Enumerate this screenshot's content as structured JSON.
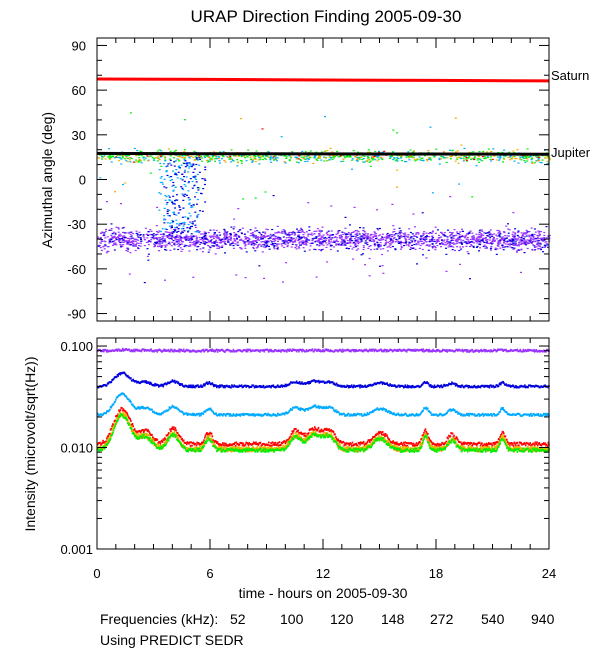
{
  "chart_data": {
    "type": "scatter",
    "title": "URAP Direction Finding  2005-09-30",
    "xlabel": "time - hours on 2005-09-30",
    "xlim": [
      0,
      24
    ],
    "xticks": [
      "0",
      "6",
      "12",
      "18",
      "24"
    ],
    "panels": [
      {
        "name": "azimuth",
        "ylabel": "Azimuthal angle (deg)",
        "ylim": [
          -95,
          95
        ],
        "yticks": [
          90,
          60,
          30,
          0,
          -30,
          -60,
          -90
        ],
        "yticklabels": [
          "90",
          "60",
          "30",
          "0",
          "-30",
          "-60",
          "-90"
        ],
        "reference_lines": [
          {
            "label": "Saturn",
            "color": "#ff0000",
            "points": [
              [
                0,
                67.5
              ],
              [
                6,
                67.2
              ],
              [
                12,
                66.8
              ],
              [
                18,
                66.5
              ],
              [
                24,
                66.2
              ]
            ]
          },
          {
            "label": "Jupiter",
            "color": "#000000",
            "points": [
              [
                0,
                17.5
              ],
              [
                6,
                17.3
              ],
              [
                12,
                17.2
              ],
              [
                18,
                17.1
              ],
              [
                24,
                17.0
              ]
            ]
          }
        ],
        "series": [
          {
            "name": "940",
            "color": "#9933ff",
            "y_center": -40,
            "spread": 7,
            "count": 1700
          },
          {
            "name": "540",
            "color": "#0000dd",
            "y_center": -40,
            "spread": 8,
            "count": 500
          },
          {
            "name": "148",
            "color": "#00ee00",
            "y_center": 16,
            "spread": 4,
            "count": 520
          },
          {
            "name": "272",
            "color": "#00aaff",
            "y_center": 15,
            "spread": 5,
            "count": 220
          },
          {
            "name": "120",
            "color": "#e6b800",
            "y_center": 16,
            "spread": 4,
            "count": 130
          },
          {
            "name": "100",
            "color": "#ff9900",
            "y_center": 16,
            "spread": 4,
            "count": 100
          },
          {
            "name": "52",
            "color": "#ff0000",
            "y_center": 16,
            "spread": 4,
            "count": 30
          }
        ]
      },
      {
        "name": "intensity",
        "ylabel": "Intensity (microvolt/sqrt(Hz))",
        "yscale": "log",
        "ylim": [
          0.001,
          0.12
        ],
        "yticks": [
          0.1,
          0.01,
          0.001
        ],
        "yticklabels": [
          "0.100",
          "0.010",
          "0.001"
        ],
        "series": [
          {
            "name": "940",
            "color": "#9933ff",
            "baseline": 0.09
          },
          {
            "name": "540",
            "color": "#0000dd",
            "baseline": 0.04
          },
          {
            "name": "272",
            "color": "#00aaff",
            "baseline": 0.021
          },
          {
            "name": "52",
            "color": "#ff0000",
            "baseline": 0.0108
          },
          {
            "name": "100",
            "color": "#ff9900",
            "baseline": 0.0095
          },
          {
            "name": "120",
            "color": "#e6b800",
            "baseline": 0.0098
          },
          {
            "name": "148",
            "color": "#00ee00",
            "baseline": 0.0094
          }
        ],
        "bursts": [
          [
            1.3,
            0.55,
            1.0
          ],
          [
            2.5,
            0.5,
            0.3
          ],
          [
            4.0,
            0.4,
            0.35
          ],
          [
            5.9,
            0.25,
            0.25
          ],
          [
            10.5,
            0.4,
            0.3
          ],
          [
            11.5,
            0.5,
            0.35
          ],
          [
            12.3,
            0.4,
            0.3
          ],
          [
            15.0,
            0.5,
            0.25
          ],
          [
            17.4,
            0.2,
            0.3
          ],
          [
            18.8,
            0.3,
            0.2
          ],
          [
            21.5,
            0.2,
            0.25
          ]
        ]
      }
    ],
    "legend": {
      "label": "Frequencies (kHz):",
      "entries": [
        {
          "text": "52",
          "color": "#ff0000"
        },
        {
          "text": "100",
          "color": "#ff9900"
        },
        {
          "text": "120",
          "color": "#e6b800"
        },
        {
          "text": "148",
          "color": "#00ee00"
        },
        {
          "text": "272",
          "color": "#00aaff"
        },
        {
          "text": "540",
          "color": "#0000dd"
        },
        {
          "text": "940",
          "color": "#9933ff"
        }
      ]
    },
    "footnote": "Using PREDICT SEDR"
  }
}
